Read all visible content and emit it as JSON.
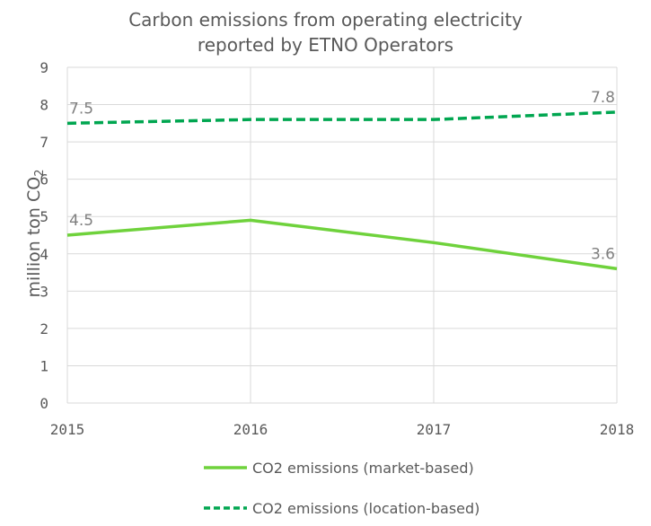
{
  "chart_data": {
    "type": "line",
    "title_lines": [
      "Carbon emissions from operating electricity",
      "reported by ETNO Operators"
    ],
    "ylabel": "million ton CO",
    "ylabel_subscript": "2",
    "x": [
      "2015",
      "2016",
      "2017",
      "2018"
    ],
    "ylim": [
      0,
      9
    ],
    "yticks": [
      "0",
      "1",
      "2",
      "3",
      "4",
      "5",
      "6",
      "7",
      "8",
      "9"
    ],
    "grid": true,
    "legend_position": "bottom",
    "series": [
      {
        "name": "CO2 emissions (market-based)",
        "values": [
          4.5,
          4.9,
          4.3,
          3.6
        ],
        "color": "#6fd23c",
        "style": "solid",
        "labels": [
          {
            "index": 0,
            "text": "4.5"
          },
          {
            "index": 3,
            "text": "3.6"
          }
        ]
      },
      {
        "name": "CO2 emissions (location-based)",
        "values": [
          7.5,
          7.6,
          7.6,
          7.8
        ],
        "color": "#00a650",
        "style": "dashed",
        "labels": [
          {
            "index": 0,
            "text": "7.5"
          },
          {
            "index": 3,
            "text": "7.8"
          }
        ]
      }
    ]
  }
}
